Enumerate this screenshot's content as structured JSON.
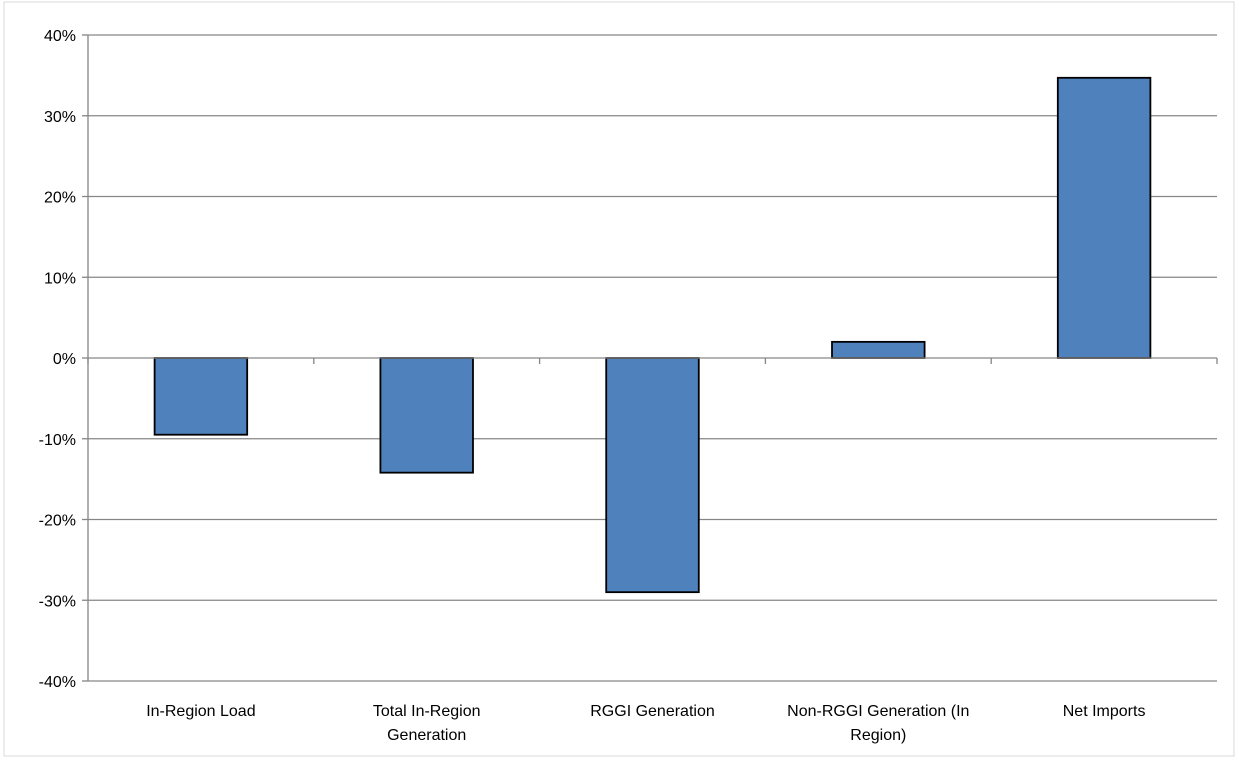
{
  "chart_data": {
    "type": "bar",
    "categories": [
      [
        "In-Region Load"
      ],
      [
        "Total In-Region",
        "Generation"
      ],
      [
        "RGGI Generation"
      ],
      [
        "Non-RGGI Generation (In",
        "Region)"
      ],
      [
        "Net Imports"
      ]
    ],
    "values": [
      -9.5,
      -14.2,
      -29.0,
      2.0,
      34.7
    ],
    "y_ticks": [
      "40%",
      "30%",
      "20%",
      "10%",
      "0%",
      "-10%",
      "-20%",
      "-30%",
      "-40%"
    ],
    "ylim": [
      -40,
      40
    ],
    "grid": true,
    "title": "",
    "xlabel": "",
    "ylabel": "",
    "bar_color": "#4F81BD",
    "bar_stroke": "#000000",
    "grid_color": "#868686"
  }
}
